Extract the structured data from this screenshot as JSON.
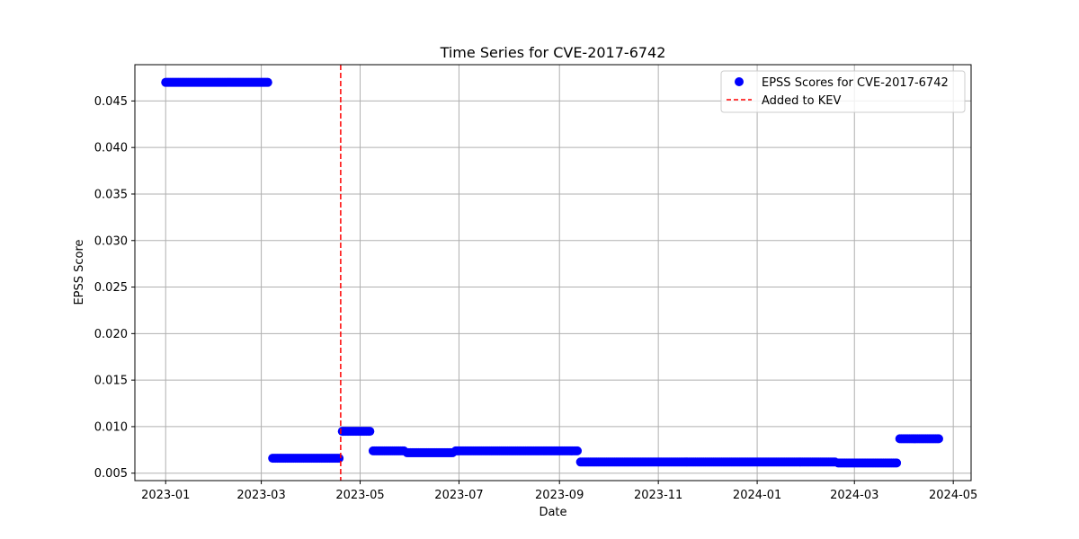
{
  "chart_data": {
    "type": "scatter",
    "title": "Time Series for CVE-2017-6742",
    "xlabel": "Date",
    "ylabel": "EPSS Score",
    "xlim": [
      "2022-12-13",
      "2024-05-12"
    ],
    "ylim": [
      0.0042,
      0.0489
    ],
    "x_ticks": [
      "2023-01",
      "2023-03",
      "2023-05",
      "2023-07",
      "2023-09",
      "2023-11",
      "2024-01",
      "2024-03",
      "2024-05"
    ],
    "y_ticks": [
      "0.005",
      "0.010",
      "0.015",
      "0.020",
      "0.025",
      "0.030",
      "0.035",
      "0.040",
      "0.045"
    ],
    "grid": true,
    "legend_position": "top-right",
    "series": [
      {
        "name": "EPSS Scores for CVE-2017-6742",
        "color": "#0000ff",
        "marker": "circle",
        "segments": [
          {
            "start": "2023-01-01",
            "end": "2023-03-05",
            "value": 0.047
          },
          {
            "start": "2023-03-08",
            "end": "2023-04-18",
            "value": 0.0066
          },
          {
            "start": "2023-04-20",
            "end": "2023-05-07",
            "value": 0.0095
          },
          {
            "start": "2023-05-09",
            "end": "2023-05-28",
            "value": 0.0074
          },
          {
            "start": "2023-05-30",
            "end": "2023-06-27",
            "value": 0.0072
          },
          {
            "start": "2023-06-29",
            "end": "2023-09-12",
            "value": 0.0074
          },
          {
            "start": "2023-09-14",
            "end": "2024-02-18",
            "value": 0.0062
          },
          {
            "start": "2024-02-20",
            "end": "2024-03-27",
            "value": 0.0061
          },
          {
            "start": "2024-03-29",
            "end": "2024-04-22",
            "value": 0.0087
          }
        ]
      }
    ],
    "vline": {
      "name": "Added to KEV",
      "date": "2023-04-19",
      "color": "#ff0000",
      "style": "dashed"
    }
  }
}
